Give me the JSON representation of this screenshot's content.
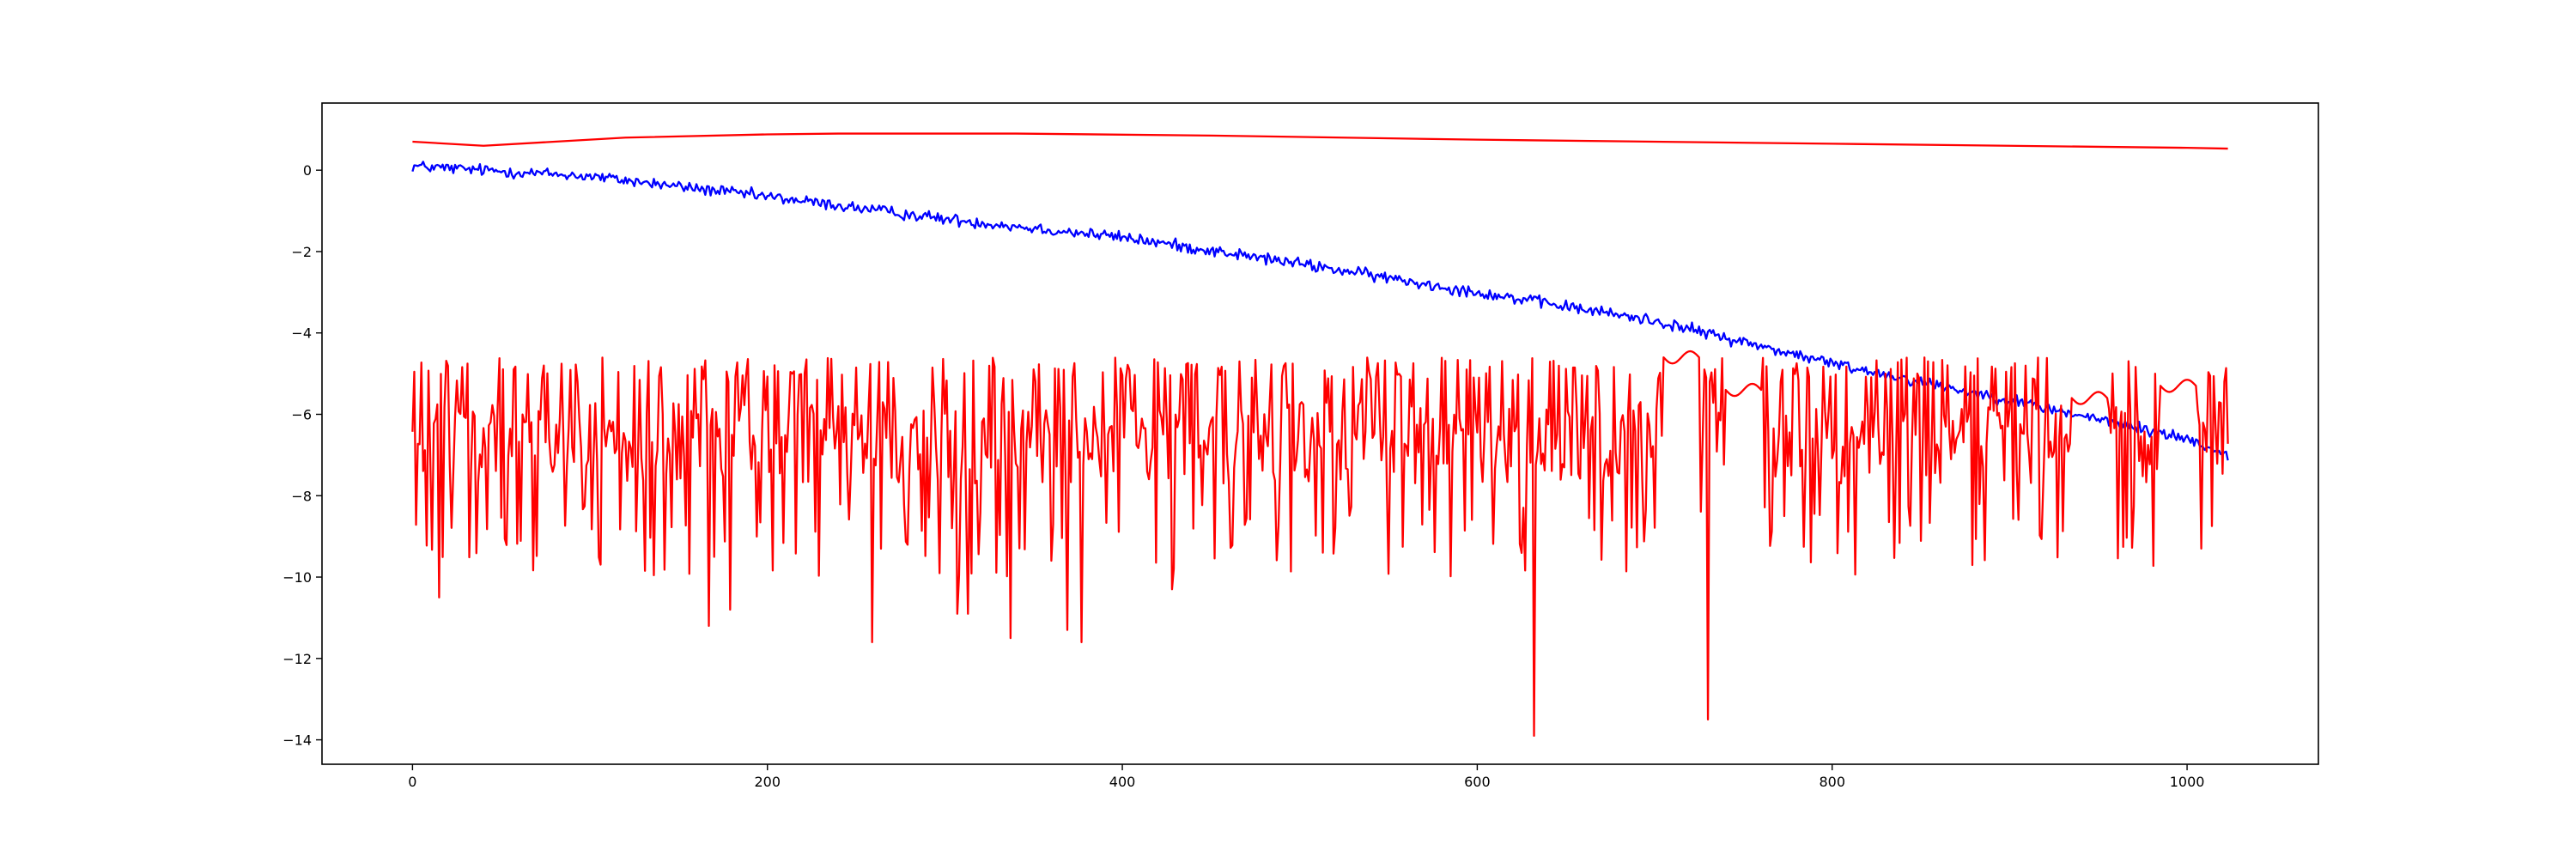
{
  "chart_data": {
    "type": "line",
    "title": "",
    "xlabel": "",
    "ylabel": "",
    "xlim": [
      -51,
      1074
    ],
    "ylim": [
      -14.6,
      1.65
    ],
    "xticks": [
      0,
      200,
      400,
      600,
      800,
      1000
    ],
    "yticks": [
      0,
      -2,
      -4,
      -6,
      -8,
      -10,
      -12,
      -14
    ],
    "grid": false,
    "legend": "none",
    "series": [
      {
        "color": "#0000ff",
        "style": "noisy-descending",
        "n": 1024,
        "trend": [
          [
            0,
            0.1
          ],
          [
            100,
            -0.15
          ],
          [
            200,
            -0.65
          ],
          [
            300,
            -1.2
          ],
          [
            400,
            -1.65
          ],
          [
            500,
            -2.3
          ],
          [
            600,
            -3.0
          ],
          [
            700,
            -3.7
          ],
          [
            800,
            -4.75
          ],
          [
            900,
            -5.65
          ],
          [
            1000,
            -6.6
          ],
          [
            1023,
            -7.0
          ]
        ],
        "noise_amplitude": 0.12
      },
      {
        "color": "#ff0000",
        "style": "smooth",
        "x": [
          0,
          40,
          120,
          200,
          240,
          340,
          450,
          600,
          800,
          1000,
          1023
        ],
        "values": [
          0.7,
          0.6,
          0.8,
          0.88,
          0.9,
          0.9,
          0.85,
          0.75,
          0.65,
          0.55,
          0.53
        ]
      },
      {
        "color": "#ff0000",
        "style": "spiky",
        "n": 1024,
        "top": -4.6,
        "base": -6.3,
        "notable_dips": [
          [
            15,
            -10.5
          ],
          [
            167,
            -11.2
          ],
          [
            179,
            -10.8
          ],
          [
            259,
            -11.6
          ],
          [
            307,
            -10.9
          ],
          [
            313,
            -10.9
          ],
          [
            337,
            -11.5
          ],
          [
            369,
            -11.3
          ],
          [
            377,
            -11.6
          ],
          [
            428,
            -10.3
          ],
          [
            632,
            -13.9
          ],
          [
            730,
            -13.5
          ]
        ],
        "smooth_regions": [
          [
            705,
            725,
            -4.6
          ],
          [
            740,
            760,
            -5.4
          ],
          [
            935,
            955,
            -5.6
          ],
          [
            985,
            1005,
            -5.3
          ]
        ]
      }
    ]
  }
}
